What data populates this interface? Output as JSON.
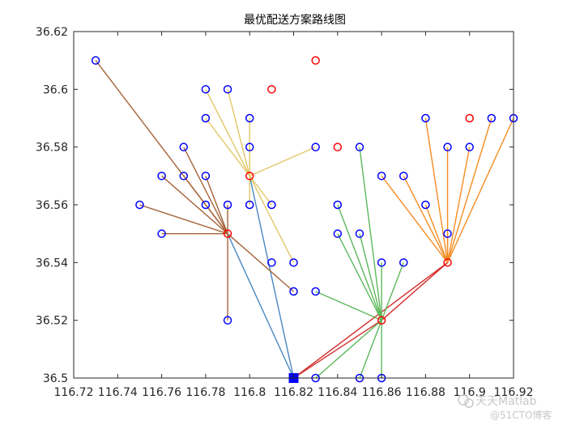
{
  "chart_data": {
    "type": "scatter",
    "title": "最优配送方案路线图",
    "xlim": [
      116.72,
      116.92
    ],
    "ylim": [
      36.5,
      36.62
    ],
    "xticks": [
      116.72,
      116.74,
      116.76,
      116.78,
      116.8,
      116.82,
      116.84,
      116.86,
      116.88,
      116.9,
      116.92
    ],
    "xtick_labels": [
      "116.72",
      "116.74",
      "116.76",
      "116.78",
      "116.8",
      "116.82",
      "116.84",
      "116.86",
      "116.88",
      "116.9",
      "116.92"
    ],
    "yticks": [
      36.5,
      36.52,
      36.54,
      36.56,
      36.58,
      36.6,
      36.62
    ],
    "ytick_labels": [
      "36.5",
      "36.52",
      "36.54",
      "36.56",
      "36.58",
      "36.6",
      "36.62"
    ],
    "grid": false,
    "depot": {
      "x": 116.82,
      "y": 36.5,
      "color": "#0000ff"
    },
    "centers": [
      {
        "x": 116.79,
        "y": 36.55
      },
      {
        "x": 116.8,
        "y": 36.57
      },
      {
        "x": 116.86,
        "y": 36.52
      },
      {
        "x": 116.89,
        "y": 36.54
      }
    ],
    "unused_centers": [
      {
        "x": 116.83,
        "y": 36.61
      },
      {
        "x": 116.81,
        "y": 36.6
      },
      {
        "x": 116.84,
        "y": 36.58
      },
      {
        "x": 116.9,
        "y": 36.59
      }
    ],
    "customers": [
      {
        "x": 116.73,
        "y": 36.61
      },
      {
        "x": 116.78,
        "y": 36.6
      },
      {
        "x": 116.79,
        "y": 36.6
      },
      {
        "x": 116.78,
        "y": 36.59
      },
      {
        "x": 116.8,
        "y": 36.59
      },
      {
        "x": 116.77,
        "y": 36.58
      },
      {
        "x": 116.8,
        "y": 36.58
      },
      {
        "x": 116.83,
        "y": 36.58
      },
      {
        "x": 116.76,
        "y": 36.57
      },
      {
        "x": 116.77,
        "y": 36.57
      },
      {
        "x": 116.78,
        "y": 36.57
      },
      {
        "x": 116.75,
        "y": 36.56
      },
      {
        "x": 116.78,
        "y": 36.56
      },
      {
        "x": 116.79,
        "y": 36.56
      },
      {
        "x": 116.8,
        "y": 36.56
      },
      {
        "x": 116.81,
        "y": 36.56
      },
      {
        "x": 116.76,
        "y": 36.55
      },
      {
        "x": 116.81,
        "y": 36.54
      },
      {
        "x": 116.82,
        "y": 36.54
      },
      {
        "x": 116.82,
        "y": 36.53
      },
      {
        "x": 116.79,
        "y": 36.52
      },
      {
        "x": 116.85,
        "y": 36.58
      },
      {
        "x": 116.84,
        "y": 36.56
      },
      {
        "x": 116.84,
        "y": 36.55
      },
      {
        "x": 116.85,
        "y": 36.55
      },
      {
        "x": 116.86,
        "y": 36.54
      },
      {
        "x": 116.87,
        "y": 36.54
      },
      {
        "x": 116.83,
        "y": 36.53
      },
      {
        "x": 116.83,
        "y": 36.5
      },
      {
        "x": 116.85,
        "y": 36.5
      },
      {
        "x": 116.86,
        "y": 36.5
      },
      {
        "x": 116.86,
        "y": 36.57
      },
      {
        "x": 116.87,
        "y": 36.57
      },
      {
        "x": 116.88,
        "y": 36.59
      },
      {
        "x": 116.89,
        "y": 36.58
      },
      {
        "x": 116.9,
        "y": 36.58
      },
      {
        "x": 116.91,
        "y": 36.59
      },
      {
        "x": 116.92,
        "y": 36.59
      },
      {
        "x": 116.88,
        "y": 36.56
      },
      {
        "x": 116.89,
        "y": 36.55
      }
    ],
    "series": [
      {
        "color": "#4a88c0",
        "segments": [
          [
            [
              116.82,
              36.5
            ],
            [
              116.79,
              36.55
            ]
          ],
          [
            [
              116.82,
              36.5
            ],
            [
              116.8,
              36.57
            ]
          ]
        ]
      },
      {
        "color": "#d42a2a",
        "segments": [
          [
            [
              116.82,
              36.5
            ],
            [
              116.86,
              36.52
            ]
          ],
          [
            [
              116.82,
              36.5
            ],
            [
              116.89,
              36.54
            ]
          ],
          [
            [
              116.86,
              36.52
            ],
            [
              116.89,
              36.54
            ]
          ]
        ]
      },
      {
        "color": "#a5643a",
        "segments": [
          [
            [
              116.79,
              36.55
            ],
            [
              116.73,
              36.61
            ]
          ],
          [
            [
              116.79,
              36.55
            ],
            [
              116.77,
              36.58
            ]
          ],
          [
            [
              116.79,
              36.55
            ],
            [
              116.76,
              36.57
            ]
          ],
          [
            [
              116.79,
              36.55
            ],
            [
              116.77,
              36.57
            ]
          ],
          [
            [
              116.79,
              36.55
            ],
            [
              116.78,
              36.57
            ]
          ],
          [
            [
              116.79,
              36.55
            ],
            [
              116.75,
              36.56
            ]
          ],
          [
            [
              116.79,
              36.55
            ],
            [
              116.78,
              36.56
            ]
          ],
          [
            [
              116.79,
              36.55
            ],
            [
              116.79,
              36.56
            ]
          ],
          [
            [
              116.79,
              36.55
            ],
            [
              116.76,
              36.55
            ]
          ],
          [
            [
              116.79,
              36.55
            ],
            [
              116.79,
              36.52
            ]
          ],
          [
            [
              116.79,
              36.55
            ],
            [
              116.82,
              36.53
            ]
          ]
        ]
      },
      {
        "color": "#e2c765",
        "segments": [
          [
            [
              116.8,
              36.57
            ],
            [
              116.78,
              36.6
            ]
          ],
          [
            [
              116.8,
              36.57
            ],
            [
              116.79,
              36.6
            ]
          ],
          [
            [
              116.8,
              36.57
            ],
            [
              116.78,
              36.59
            ]
          ],
          [
            [
              116.8,
              36.57
            ],
            [
              116.8,
              36.59
            ]
          ],
          [
            [
              116.8,
              36.57
            ],
            [
              116.8,
              36.58
            ]
          ],
          [
            [
              116.8,
              36.57
            ],
            [
              116.83,
              36.58
            ]
          ],
          [
            [
              116.8,
              36.57
            ],
            [
              116.8,
              36.56
            ]
          ],
          [
            [
              116.8,
              36.57
            ],
            [
              116.81,
              36.56
            ]
          ],
          [
            [
              116.8,
              36.57
            ],
            [
              116.82,
              36.54
            ]
          ]
        ]
      },
      {
        "color": "#5cb85c",
        "segments": [
          [
            [
              116.86,
              36.52
            ],
            [
              116.85,
              36.58
            ]
          ],
          [
            [
              116.86,
              36.52
            ],
            [
              116.84,
              36.56
            ]
          ],
          [
            [
              116.86,
              36.52
            ],
            [
              116.84,
              36.55
            ]
          ],
          [
            [
              116.86,
              36.52
            ],
            [
              116.85,
              36.55
            ]
          ],
          [
            [
              116.86,
              36.52
            ],
            [
              116.86,
              36.54
            ]
          ],
          [
            [
              116.86,
              36.52
            ],
            [
              116.87,
              36.54
            ]
          ],
          [
            [
              116.86,
              36.52
            ],
            [
              116.83,
              36.53
            ]
          ],
          [
            [
              116.86,
              36.52
            ],
            [
              116.83,
              36.5
            ]
          ],
          [
            [
              116.86,
              36.52
            ],
            [
              116.85,
              36.5
            ]
          ],
          [
            [
              116.86,
              36.52
            ],
            [
              116.86,
              36.5
            ]
          ]
        ]
      },
      {
        "color": "#f58d23",
        "segments": [
          [
            [
              116.89,
              36.54
            ],
            [
              116.86,
              36.57
            ]
          ],
          [
            [
              116.89,
              36.54
            ],
            [
              116.87,
              36.57
            ]
          ],
          [
            [
              116.89,
              36.54
            ],
            [
              116.88,
              36.59
            ]
          ],
          [
            [
              116.89,
              36.54
            ],
            [
              116.89,
              36.58
            ]
          ],
          [
            [
              116.89,
              36.54
            ],
            [
              116.9,
              36.58
            ]
          ],
          [
            [
              116.89,
              36.54
            ],
            [
              116.91,
              36.59
            ]
          ],
          [
            [
              116.89,
              36.54
            ],
            [
              116.92,
              36.59
            ]
          ],
          [
            [
              116.89,
              36.54
            ],
            [
              116.88,
              36.56
            ]
          ],
          [
            [
              116.89,
              36.54
            ],
            [
              116.89,
              36.55
            ]
          ]
        ]
      }
    ],
    "marker_colors": {
      "customer": "#0000ff",
      "center": "#ff0000"
    }
  },
  "watermark": {
    "line1": "天天Matlab",
    "line2": "@51CTO博客"
  }
}
